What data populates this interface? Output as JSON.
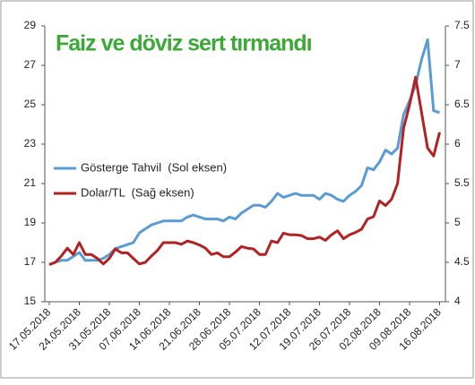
{
  "chart_data": {
    "type": "line",
    "title": "Faiz ve döviz sert tırmandı",
    "categories": [
      "17.05.2018",
      null,
      null,
      null,
      null,
      "24.05.2018",
      null,
      null,
      null,
      null,
      "31.05.2018",
      null,
      null,
      null,
      null,
      "07.06.2018",
      null,
      null,
      null,
      null,
      "14.06.2018",
      null,
      null,
      null,
      null,
      "21.06.2018",
      null,
      null,
      null,
      null,
      "28.06.2018",
      null,
      null,
      null,
      null,
      "05.07.2018",
      null,
      null,
      null,
      null,
      "12.07.2018",
      null,
      null,
      null,
      null,
      "19.07.2018",
      null,
      null,
      null,
      null,
      "26.07.2018",
      null,
      null,
      null,
      null,
      "02.08.2018",
      null,
      null,
      null,
      null,
      "09.08.2018",
      null,
      null,
      null,
      null,
      "16.08.2018"
    ],
    "series": [
      {
        "name": "Gösterge Tahvil  (Sol eksen)",
        "color": "#5b9bd5",
        "axis": "y",
        "values": [
          16.9,
          17.0,
          17.1,
          17.1,
          17.3,
          17.5,
          17.1,
          17.1,
          17.1,
          17.2,
          17.4,
          17.7,
          17.8,
          17.9,
          18.0,
          18.5,
          18.7,
          18.9,
          19.0,
          19.1,
          19.1,
          19.1,
          19.1,
          19.3,
          19.4,
          19.3,
          19.2,
          19.2,
          19.2,
          19.1,
          19.3,
          19.2,
          19.5,
          19.7,
          19.9,
          19.9,
          19.8,
          20.1,
          20.5,
          20.3,
          20.4,
          20.5,
          20.4,
          20.4,
          20.4,
          20.2,
          20.5,
          20.4,
          20.2,
          20.1,
          20.4,
          20.6,
          20.9,
          21.8,
          21.7,
          22.1,
          22.7,
          22.5,
          22.8,
          24.5,
          25.2,
          26.0,
          27.3,
          28.3,
          24.7,
          24.6
        ]
      },
      {
        "name": "Dolar/TL  (Sağ eksen)",
        "color": "#b22222",
        "axis": "y2",
        "values": [
          4.47,
          4.5,
          4.58,
          4.68,
          4.6,
          4.75,
          4.6,
          4.6,
          4.55,
          4.48,
          4.55,
          4.67,
          4.62,
          4.62,
          4.55,
          4.48,
          4.5,
          4.58,
          4.65,
          4.75,
          4.75,
          4.75,
          4.73,
          4.77,
          4.75,
          4.72,
          4.68,
          4.6,
          4.62,
          4.57,
          4.57,
          4.63,
          4.7,
          4.68,
          4.67,
          4.6,
          4.6,
          4.77,
          4.75,
          4.87,
          4.85,
          4.85,
          4.84,
          4.8,
          4.8,
          4.82,
          4.78,
          4.85,
          4.9,
          4.8,
          4.85,
          4.88,
          4.92,
          5.05,
          5.08,
          5.28,
          5.22,
          5.3,
          5.5,
          6.2,
          6.5,
          6.85,
          6.4,
          5.95,
          5.85,
          6.15
        ]
      }
    ],
    "ylim": [
      15,
      29
    ],
    "yticks": [
      15,
      17,
      19,
      21,
      23,
      25,
      27,
      29
    ],
    "y2lim": [
      4,
      7.5
    ],
    "y2ticks": [
      4,
      4.5,
      5,
      5.5,
      6,
      6.5,
      7,
      7.5
    ],
    "grid": false
  }
}
